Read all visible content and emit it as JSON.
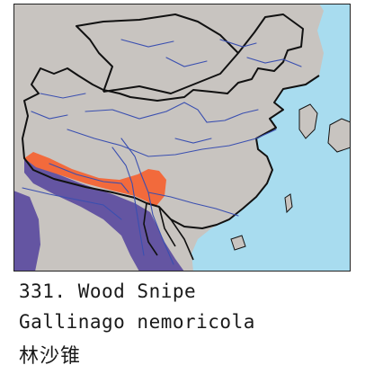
{
  "map": {
    "colors": {
      "sea": "#a8dcef",
      "land": "#c8c4c0",
      "border": "#111111",
      "river": "#3a4fb0",
      "breeding_range": "#f26a3c",
      "wintering_range": "#5f4fa0",
      "frame": "#222222"
    },
    "legend_note": ""
  },
  "caption": {
    "number_name": "331. Wood Snipe",
    "scientific_name": "Gallinago nemoricola",
    "chinese_name": "林沙锥"
  }
}
